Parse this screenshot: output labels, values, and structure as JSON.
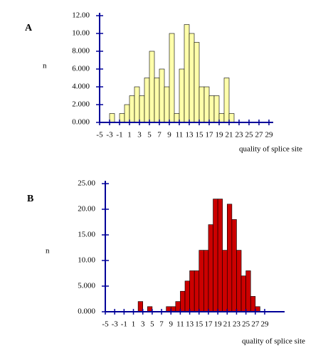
{
  "chart_data": [
    {
      "type": "histogram",
      "label": "A",
      "ylabel": "n",
      "xlabel": "quality of splice site",
      "bins": [
        -3,
        -2,
        -1,
        0,
        1,
        2,
        3,
        4,
        5,
        6,
        7,
        8,
        9,
        10,
        11,
        12,
        13,
        14,
        15,
        16,
        17,
        18,
        19,
        20,
        21,
        22
      ],
      "counts": [
        1,
        0,
        1,
        2,
        3,
        4,
        3,
        5,
        8,
        5,
        6,
        4,
        10,
        1,
        6,
        11,
        10,
        9,
        4,
        4,
        3,
        3,
        1,
        5,
        1
      ],
      "color": "#ffffaa",
      "xlim": [
        -5,
        29
      ],
      "xticks": [
        -5,
        -3,
        -1,
        1,
        3,
        5,
        7,
        9,
        11,
        13,
        15,
        17,
        19,
        21,
        23,
        25,
        27,
        29
      ],
      "ylim": [
        0,
        12
      ],
      "yticks": [
        {
          "value": 0,
          "label": "0.000"
        },
        {
          "value": 2,
          "label": "2.000"
        },
        {
          "value": 4,
          "label": "4.000"
        },
        {
          "value": 6,
          "label": "6.000"
        },
        {
          "value": 8,
          "label": "8.000"
        },
        {
          "value": 10,
          "label": "10.00"
        },
        {
          "value": 12,
          "label": "12.00"
        }
      ]
    },
    {
      "type": "histogram",
      "label": "B",
      "ylabel": "n",
      "xlabel": "quality of splice site",
      "bins": [
        2,
        3,
        4,
        5,
        6,
        7,
        8,
        9,
        10,
        11,
        12,
        13,
        14,
        15,
        16,
        17,
        18,
        19,
        20,
        21,
        22,
        23,
        24,
        25,
        26,
        27,
        28
      ],
      "counts": [
        2,
        0,
        1,
        0,
        0,
        0,
        1,
        1,
        2,
        4,
        6,
        8,
        8,
        12,
        12,
        17,
        22,
        22,
        12,
        21,
        18,
        12,
        7,
        8,
        3,
        1
      ],
      "color": "#cc0000",
      "xlim": [
        -5,
        29
      ],
      "xticks": [
        -5,
        -3,
        -1,
        1,
        3,
        5,
        7,
        9,
        11,
        13,
        15,
        17,
        19,
        21,
        23,
        25,
        27,
        29
      ],
      "ylim": [
        0,
        25
      ],
      "yticks": [
        {
          "value": 0,
          "label": "0.000"
        },
        {
          "value": 5,
          "label": "5.000"
        },
        {
          "value": 10,
          "label": "10.00"
        },
        {
          "value": 15,
          "label": "15.00"
        },
        {
          "value": 20,
          "label": "20.00"
        },
        {
          "value": 25,
          "label": "25.00"
        }
      ]
    }
  ]
}
